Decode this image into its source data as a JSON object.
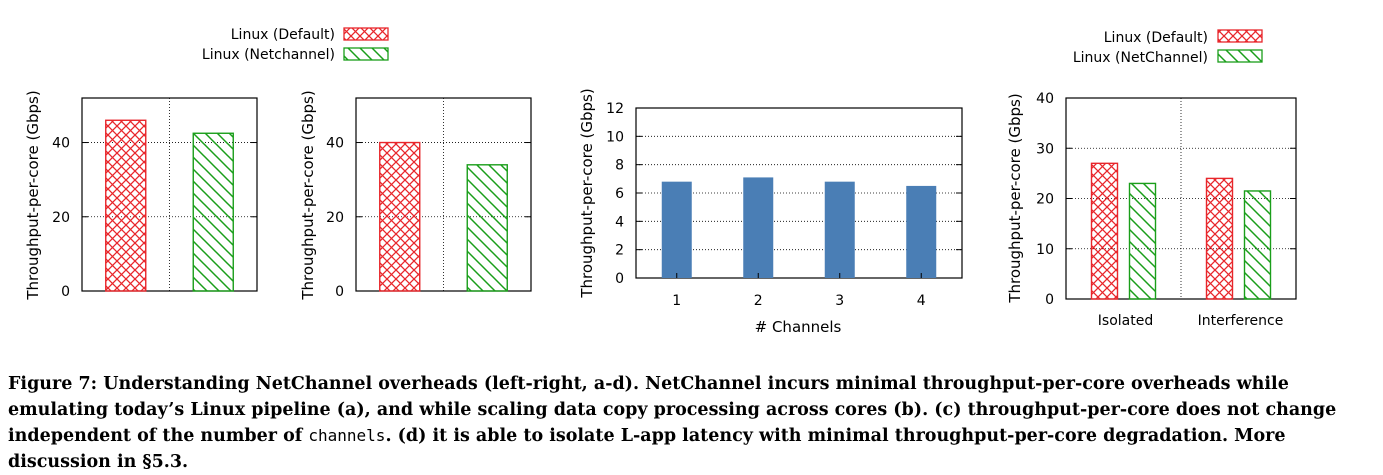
{
  "chart_data": [
    {
      "type": "bar",
      "id": "a",
      "categories": [
        "Linux (Default)",
        "Linux (Netchannel)"
      ],
      "values": [
        46,
        42.5
      ],
      "ylabel": "Throughput-per-core (Gbps)",
      "yticks": [
        "0",
        "20",
        "40"
      ],
      "ylim": [
        0,
        52
      ],
      "legend": [
        "Linux (Default)",
        "Linux (Netchannel)"
      ],
      "legend_position": "top",
      "grid": "dotted",
      "colors": [
        "#e8262b",
        "#1a9e1a"
      ]
    },
    {
      "type": "bar",
      "id": "b",
      "categories": [
        "Linux (Default)",
        "Linux (Netchannel)"
      ],
      "values": [
        40,
        34
      ],
      "ylabel": "Throughput-per-core (Gbps)",
      "yticks": [
        "0",
        "20",
        "40"
      ],
      "ylim": [
        0,
        52
      ],
      "grid": "dotted",
      "colors": [
        "#e8262b",
        "#1a9e1a"
      ]
    },
    {
      "type": "bar",
      "id": "c",
      "categories": [
        "1",
        "2",
        "3",
        "4"
      ],
      "values": [
        6.8,
        7.1,
        6.8,
        6.5
      ],
      "xlabel": "# Channels",
      "ylabel": "Throughput-per-core (Gbps)",
      "yticks": [
        "0",
        "2",
        "4",
        "6",
        "8",
        "10",
        "12"
      ],
      "ylim": [
        0,
        12
      ],
      "grid": "dotted",
      "colors": [
        "#4a7eb5"
      ]
    },
    {
      "type": "bar",
      "id": "d",
      "categories": [
        "Isolated",
        "Interference"
      ],
      "series": [
        {
          "name": "Linux (Default)",
          "values": [
            27,
            24
          ]
        },
        {
          "name": "Linux (NetChannel)",
          "values": [
            23,
            21.5
          ]
        }
      ],
      "ylabel": "Throughput-per-core (Gbps)",
      "yticks": [
        "0",
        "10",
        "20",
        "30",
        "40"
      ],
      "ylim": [
        0,
        40
      ],
      "legend_position": "top",
      "grid": "dotted",
      "colors": [
        "#e8262b",
        "#1a9e1a"
      ]
    }
  ],
  "caption": {
    "part1": "Figure 7: Understanding NetChannel overheads (left-right, a-d). NetChannel incurs minimal throughput-per-core overheads while emulating today’s Linux pipeline (a), and while scaling data copy processing across cores (b). (c) throughput-per-core does not change independent of the number of ",
    "code": "channels",
    "part2": ". (d) it is able to isolate L-app latency with minimal throughput-per-core degradation. More discussion in §5.3."
  }
}
